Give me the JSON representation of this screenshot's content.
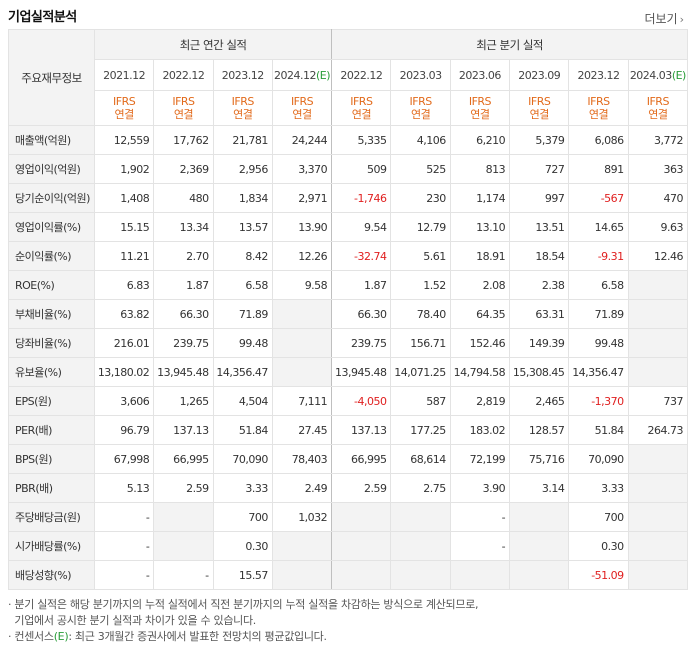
{
  "title": "기업실적분석",
  "more_label": "더보기",
  "header": {
    "row_head": "주요재무정보",
    "annual_group": "최근 연간 실적",
    "quarter_group": "최근 분기 실적",
    "annual_periods": [
      "2021.12",
      "2022.12",
      "2023.12",
      "2024.12"
    ],
    "annual_estimate_mark": "(E)",
    "quarter_periods": [
      "2022.12",
      "2023.03",
      "2023.06",
      "2023.09",
      "2023.12",
      "2024.03"
    ],
    "quarter_estimate_mark": "(E)",
    "ifrs": "IFRS",
    "consol": "연결"
  },
  "rows": [
    {
      "label": "매출액(억원)",
      "values": [
        "12,559",
        "17,762",
        "21,781",
        "24,244",
        "5,335",
        "4,106",
        "6,210",
        "5,379",
        "6,086",
        "3,772"
      ]
    },
    {
      "label": "영업이익(억원)",
      "values": [
        "1,902",
        "2,369",
        "2,956",
        "3,370",
        "509",
        "525",
        "813",
        "727",
        "891",
        "363"
      ]
    },
    {
      "label": "당기순이익(억원)",
      "values": [
        "1,408",
        "480",
        "1,834",
        "2,971",
        "-1,746",
        "230",
        "1,174",
        "997",
        "-567",
        "470"
      ]
    },
    {
      "label": "영업이익률(%)",
      "values": [
        "15.15",
        "13.34",
        "13.57",
        "13.90",
        "9.54",
        "12.79",
        "13.10",
        "13.51",
        "14.65",
        "9.63"
      ]
    },
    {
      "label": "순이익률(%)",
      "values": [
        "11.21",
        "2.70",
        "8.42",
        "12.26",
        "-32.74",
        "5.61",
        "18.91",
        "18.54",
        "-9.31",
        "12.46"
      ]
    },
    {
      "label": "ROE(%)",
      "values": [
        "6.83",
        "1.87",
        "6.58",
        "9.58",
        "1.87",
        "1.52",
        "2.08",
        "2.38",
        "6.58",
        ""
      ]
    },
    {
      "label": "부채비율(%)",
      "values": [
        "63.82",
        "66.30",
        "71.89",
        "",
        "66.30",
        "78.40",
        "64.35",
        "63.31",
        "71.89",
        ""
      ]
    },
    {
      "label": "당좌비율(%)",
      "values": [
        "216.01",
        "239.75",
        "99.48",
        "",
        "239.75",
        "156.71",
        "152.46",
        "149.39",
        "99.48",
        ""
      ]
    },
    {
      "label": "유보율(%)",
      "values": [
        "13,180.02",
        "13,945.48",
        "14,356.47",
        "",
        "13,945.48",
        "14,071.25",
        "14,794.58",
        "15,308.45",
        "14,356.47",
        ""
      ]
    },
    {
      "label": "EPS(원)",
      "values": [
        "3,606",
        "1,265",
        "4,504",
        "7,111",
        "-4,050",
        "587",
        "2,819",
        "2,465",
        "-1,370",
        "737"
      ]
    },
    {
      "label": "PER(배)",
      "values": [
        "96.79",
        "137.13",
        "51.84",
        "27.45",
        "137.13",
        "177.25",
        "183.02",
        "128.57",
        "51.84",
        "264.73"
      ]
    },
    {
      "label": "BPS(원)",
      "values": [
        "67,998",
        "66,995",
        "70,090",
        "78,403",
        "66,995",
        "68,614",
        "72,199",
        "75,716",
        "70,090",
        ""
      ]
    },
    {
      "label": "PBR(배)",
      "values": [
        "5.13",
        "2.59",
        "3.33",
        "2.49",
        "2.59",
        "2.75",
        "3.90",
        "3.14",
        "3.33",
        ""
      ]
    },
    {
      "label": "주당배당금(원)",
      "values": [
        "-",
        "",
        "700",
        "1,032",
        "",
        "",
        "-",
        "",
        "700",
        ""
      ]
    },
    {
      "label": "시가배당률(%)",
      "values": [
        "-",
        "",
        "0.30",
        "",
        "",
        "",
        "-",
        "",
        "0.30",
        ""
      ]
    },
    {
      "label": "배당성향(%)",
      "values": [
        "-",
        "-",
        "15.57",
        "",
        "",
        "",
        "",
        "",
        "-51.09",
        ""
      ]
    }
  ],
  "notes": [
    "· 분기 실적은 해당 분기까지의 누적 실적에서 직전 분기까지의 누적 실적을 차감하는 방식으로 계산되므로,",
    "  기업에서 공시한 분기 실적과 차이가 있을 수 있습니다.",
    "· 컨센서스",
    ": 최근 3개월간 증권사에서 발표한 전망치의 평균값입니다."
  ],
  "notes_e_mark": "(E)",
  "colors": {
    "estimate": "#2a9d3a",
    "negative": "#e02020",
    "ifrs": "#e26a1b",
    "header_bg": "#f3f3f3"
  }
}
